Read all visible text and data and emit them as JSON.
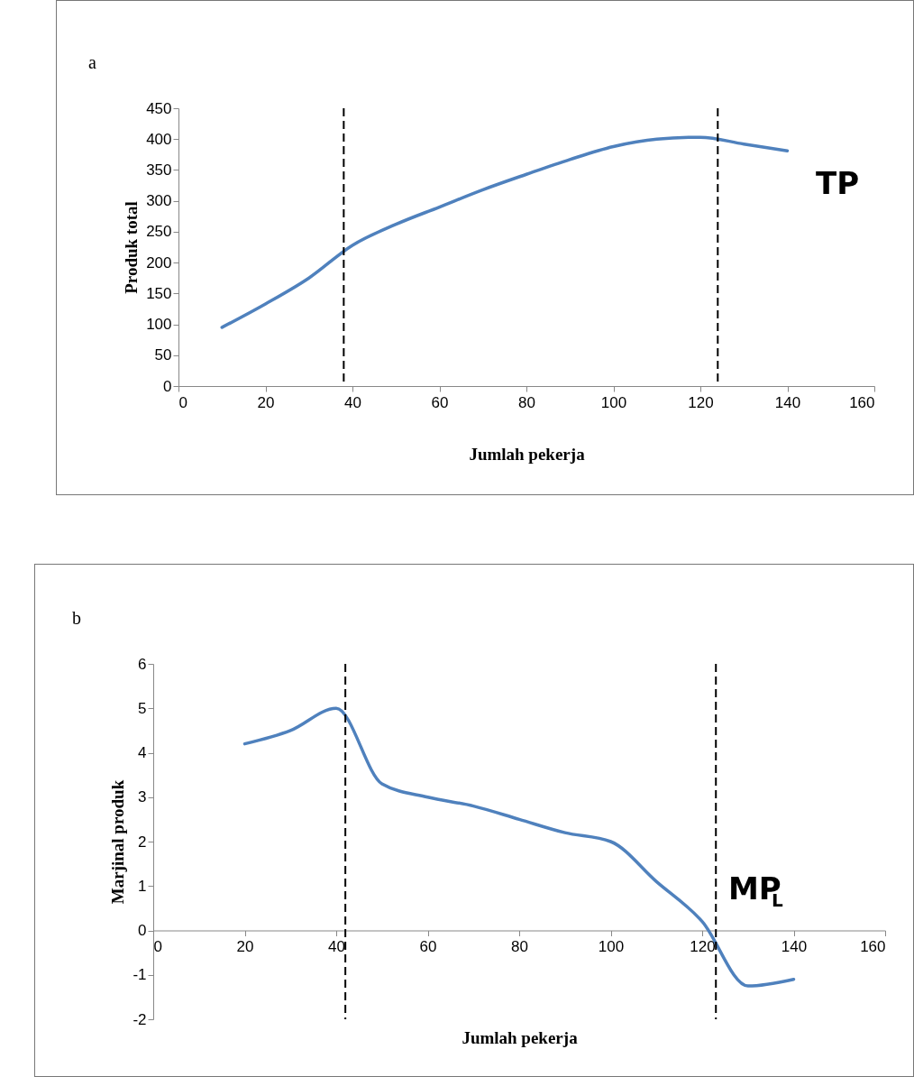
{
  "chart_data": [
    {
      "type": "line",
      "title": "a",
      "xlabel": "Jumlah pekerja",
      "ylabel": "Produk total",
      "series": [
        {
          "color": "#4f81bd",
          "x": [
            10,
            20,
            30,
            40,
            50,
            60,
            70,
            80,
            90,
            100,
            110,
            120,
            130,
            140
          ],
          "values": [
            95,
            133,
            175,
            228,
            262,
            290,
            318,
            343,
            367,
            388,
            400,
            403,
            392,
            381
          ]
        }
      ],
      "xlim": [
        0,
        160
      ],
      "xticks": [
        0,
        20,
        40,
        60,
        80,
        100,
        120,
        140,
        160
      ],
      "ylim": [
        0,
        450
      ],
      "yticks": [
        0,
        50,
        100,
        150,
        200,
        250,
        300,
        350,
        400,
        450
      ],
      "grid": false,
      "marker": "none",
      "line_style": "solid",
      "ref_lines": [
        {
          "axis": "x",
          "value": 38,
          "label": null,
          "color": "#000000",
          "line_style": "dashed"
        },
        {
          "axis": "x",
          "value": 124,
          "label": null,
          "color": "#000000",
          "line_style": "dashed"
        }
      ],
      "annotations": [
        "TP"
      ]
    },
    {
      "type": "line",
      "title": "b",
      "xlabel": "Jumlah pekerja",
      "ylabel": "Marjinal produk",
      "series": [
        {
          "color": "#4f81bd",
          "x": [
            20,
            30,
            40,
            50,
            60,
            70,
            80,
            90,
            100,
            110,
            120,
            130,
            140
          ],
          "values": [
            4.2,
            4.5,
            5.0,
            3.3,
            3.0,
            2.8,
            2.5,
            2.2,
            2.0,
            1.1,
            0.2,
            -1.25,
            -1.1
          ]
        }
      ],
      "xlim": [
        0,
        160
      ],
      "xticks": [
        0,
        20,
        40,
        60,
        80,
        100,
        120,
        140,
        160
      ],
      "ylim": [
        -2,
        6
      ],
      "yticks": [
        -2,
        -1,
        0,
        1,
        2,
        3,
        4,
        5,
        6
      ],
      "grid": false,
      "marker": "none",
      "line_style": "solid",
      "ref_lines": [
        {
          "axis": "x",
          "value": 42,
          "label": null,
          "color": "#000000",
          "line_style": "dashed"
        },
        {
          "axis": "x",
          "value": 123,
          "label": null,
          "color": "#000000",
          "line_style": "dashed"
        }
      ],
      "annotations": [
        "MP$_{L}$"
      ]
    }
  ]
}
